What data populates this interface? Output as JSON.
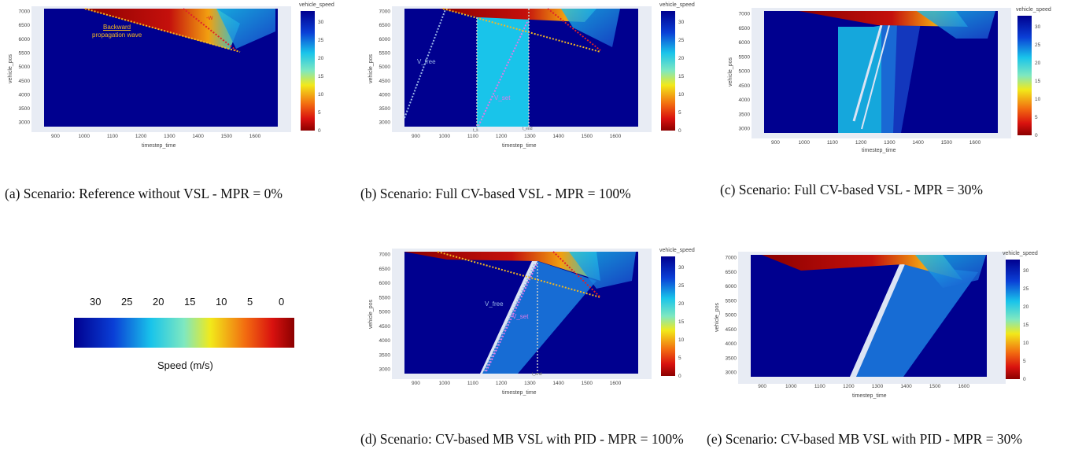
{
  "colorscale_note": "jet-like speed colorscale",
  "colors": {
    "dark_blue": "#00008f",
    "cyan": "#19c4ea",
    "yellow": "#f2e91a",
    "red": "#e31a10",
    "dark_red": "#8b0000",
    "plot_bg": "#e8ecf4"
  },
  "speed_legend": {
    "ticks": [
      "30",
      "25",
      "20",
      "15",
      "10",
      "5",
      "0"
    ],
    "label": "Speed (m/s)"
  },
  "captions": {
    "a": "(a) Scenario: Reference without VSL - MPR = 0%",
    "b": "(b) Scenario: Full CV-based VSL - MPR = 100%",
    "c": "(c) Scenario: Full CV-based VSL - MPR = 30%",
    "d": "(d) Scenario: CV-based MB VSL with PID - MPR = 100%",
    "e": "(e) Scenario: CV-based MB VSL with PID - MPR = 30%"
  },
  "chart_data": [
    {
      "id": "a",
      "type": "heatmap",
      "xlabel": "timestep_time",
      "ylabel": "vehicle_pos",
      "colorbar_title": "vehicle_speed",
      "xticks": [
        "900",
        "1000",
        "1100",
        "1200",
        "1300",
        "1400",
        "1500",
        "1600"
      ],
      "yticks": [
        "7000",
        "6500",
        "6000",
        "5500",
        "5000",
        "4500",
        "4000",
        "3500",
        "3000"
      ],
      "cbar_ticks": [
        "30",
        "25",
        "20",
        "15",
        "10",
        "5",
        "0"
      ],
      "xlim": [
        860,
        1680
      ],
      "ylim": [
        2850,
        7100
      ],
      "annotations": {
        "backward": "Backward",
        "propagation": "propagation wave",
        "w": "-w"
      }
    },
    {
      "id": "b",
      "type": "heatmap",
      "xlabel": "timestep_time",
      "ylabel": "vehicle_pos",
      "colorbar_title": "vehicle_speed",
      "xticks": [
        "900",
        "1000",
        "1100",
        "1200",
        "1300",
        "1400",
        "1500",
        "1600"
      ],
      "yticks": [
        "7000",
        "6500",
        "6000",
        "5500",
        "5000",
        "4500",
        "4000",
        "3500",
        "3000"
      ],
      "cbar_ticks": [
        "30",
        "25",
        "20",
        "15",
        "10",
        "5",
        "0"
      ],
      "xlim": [
        860,
        1680
      ],
      "ylim": [
        2850,
        7100
      ],
      "annotations": {
        "vfree": "V_free",
        "vset": "V_set",
        "tstart": "t_s",
        "tend": "t_end"
      }
    },
    {
      "id": "c",
      "type": "heatmap",
      "xlabel": "timestep_time",
      "ylabel": "vehicle_pos",
      "colorbar_title": "vehicle_speed",
      "xticks": [
        "900",
        "1000",
        "1100",
        "1200",
        "1300",
        "1400",
        "1500",
        "1600"
      ],
      "yticks": [
        "7000",
        "6500",
        "6000",
        "5500",
        "5000",
        "4500",
        "4000",
        "3500",
        "3000"
      ],
      "cbar_ticks": [
        "30",
        "25",
        "20",
        "15",
        "10",
        "5",
        "0"
      ],
      "xlim": [
        860,
        1680
      ],
      "ylim": [
        2850,
        7100
      ]
    },
    {
      "id": "d",
      "type": "heatmap",
      "xlabel": "timestep_time",
      "ylabel": "vehicle_pos",
      "colorbar_title": "vehicle_speed",
      "xticks": [
        "900",
        "1000",
        "1100",
        "1200",
        "1300",
        "1400",
        "1500",
        "1600"
      ],
      "yticks": [
        "7000",
        "6500",
        "6000",
        "5500",
        "5000",
        "4500",
        "4000",
        "3500",
        "3000"
      ],
      "cbar_ticks": [
        "30",
        "25",
        "20",
        "15",
        "10",
        "5",
        "0"
      ],
      "xlim": [
        860,
        1680
      ],
      "ylim": [
        2850,
        7100
      ],
      "annotations": {
        "vfree": "V_free",
        "vset": "V_set",
        "tend": "t_end"
      }
    },
    {
      "id": "e",
      "type": "heatmap",
      "xlabel": "timestep_time",
      "ylabel": "vehicle_pos",
      "colorbar_title": "vehicle_speed",
      "xticks": [
        "900",
        "1000",
        "1100",
        "1200",
        "1300",
        "1400",
        "1500",
        "1600"
      ],
      "yticks": [
        "7000",
        "6500",
        "6000",
        "5500",
        "5000",
        "4500",
        "4000",
        "3500",
        "3000"
      ],
      "cbar_ticks": [
        "30",
        "25",
        "20",
        "15",
        "10",
        "5",
        "0"
      ],
      "xlim": [
        860,
        1680
      ],
      "ylim": [
        2850,
        7100
      ]
    }
  ]
}
